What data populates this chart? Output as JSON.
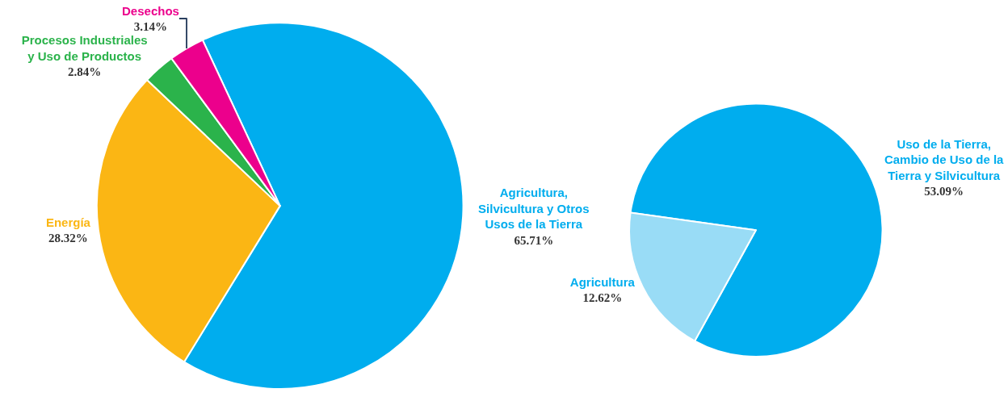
{
  "chart_data": [
    {
      "type": "pie",
      "categories": [
        "Agricultura,\nSilvicultura y Otros\nUsos de la Tierra",
        "Energía",
        "Procesos Industriales\ny Uso de Productos",
        "Desechos"
      ],
      "values": [
        65.71,
        28.32,
        2.84,
        3.14
      ],
      "value_labels": [
        "65.71%",
        "28.32%",
        "2.84%",
        "3.14%"
      ],
      "colors": [
        "#00adee",
        "#fbb614",
        "#2bb34b",
        "#ec008c"
      ]
    },
    {
      "type": "pie",
      "categories": [
        "Uso de la Tierra,\nCambio de Uso de la\nTierra y Silvicultura",
        "Agricultura"
      ],
      "values": [
        53.09,
        12.62
      ],
      "value_labels": [
        "53.09%",
        "12.62%"
      ],
      "colors": [
        "#00adee",
        "#99dcf6"
      ]
    }
  ]
}
